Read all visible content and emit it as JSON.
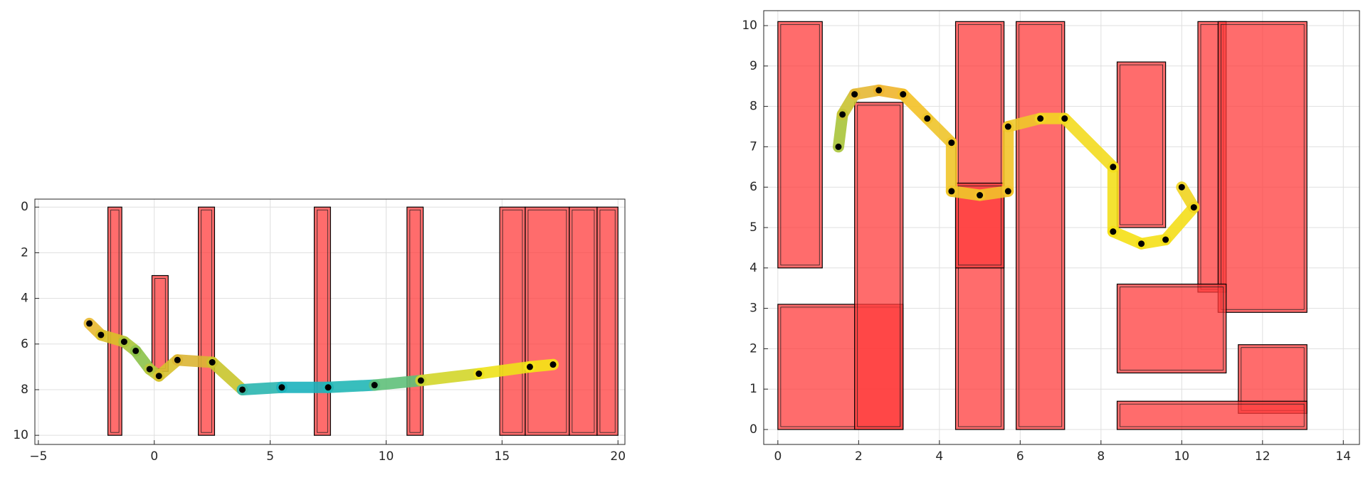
{
  "chart_data": [
    {
      "type": "line",
      "y_reversed": true,
      "grid": true,
      "obstacle_color": "#ff3b3b",
      "xlim": [
        -5.15,
        20.3
      ],
      "ylim": [
        -0.35,
        10.4
      ],
      "xticks": [
        {
          "value": -5,
          "label": "−5"
        },
        0,
        5,
        10,
        15,
        20
      ],
      "yticks": [
        0,
        2,
        4,
        6,
        8,
        10
      ],
      "obstacles": [
        {
          "x": [
            -2.0,
            -1.4
          ],
          "y": [
            0,
            10
          ]
        },
        {
          "x": [
            -0.1,
            0.6
          ],
          "y": [
            3,
            7.2
          ]
        },
        {
          "x": [
            1.9,
            2.6
          ],
          "y": [
            0,
            10
          ]
        },
        {
          "x": [
            6.9,
            7.6
          ],
          "y": [
            0,
            10
          ]
        },
        {
          "x": [
            10.9,
            11.6
          ],
          "y": [
            0,
            10
          ]
        },
        {
          "x": [
            14.9,
            16.0
          ],
          "y": [
            0,
            10
          ]
        },
        {
          "x": [
            16.0,
            17.9
          ],
          "y": [
            0,
            10
          ]
        },
        {
          "x": [
            17.9,
            19.1
          ],
          "y": [
            0,
            10
          ]
        },
        {
          "x": [
            19.1,
            20.0
          ],
          "y": [
            0,
            10
          ]
        }
      ],
      "series": [
        {
          "x": [
            -2.8,
            -2.3,
            -1.3,
            -0.8,
            -0.2,
            0.2,
            1.0,
            2.5,
            3.8,
            5.5,
            7.5,
            9.5,
            11.5,
            14.0,
            16.2,
            17.2
          ],
          "y": [
            5.1,
            5.6,
            5.9,
            6.3,
            7.1,
            7.4,
            6.7,
            6.8,
            8.0,
            7.9,
            7.9,
            7.8,
            7.6,
            7.3,
            7.0,
            6.9
          ],
          "colors": [
            "#e8b830",
            "#d9c028",
            "#a9c53a",
            "#8cc24a",
            "#b9c63a",
            "#d8c12e",
            "#dcb534",
            "#c9c52c",
            "#2ab6b0",
            "#1bb3be",
            "#22b7b6",
            "#5fc07a",
            "#d3d62a",
            "#eee21a",
            "#f5e516",
            "#f2dc1c"
          ]
        }
      ]
    },
    {
      "type": "line",
      "y_reversed": false,
      "grid": true,
      "obstacle_color": "#ff3b3b",
      "xlim": [
        -0.35,
        14.4
      ],
      "ylim": [
        -0.37,
        10.37
      ],
      "xticks": [
        0,
        2,
        4,
        6,
        8,
        10,
        12,
        14
      ],
      "yticks": [
        0,
        1,
        2,
        3,
        4,
        5,
        6,
        7,
        8,
        9,
        10
      ],
      "obstacles": [
        {
          "x": [
            0,
            1.1
          ],
          "y": [
            4,
            10.1
          ]
        },
        {
          "x": [
            0,
            3.1
          ],
          "y": [
            0,
            3.1
          ]
        },
        {
          "x": [
            1.9,
            3.1
          ],
          "y": [
            0,
            8.1
          ]
        },
        {
          "x": [
            4.4,
            5.6
          ],
          "y": [
            0,
            10.1
          ]
        },
        {
          "x": [
            4.4,
            5.6
          ],
          "y": [
            4,
            6.1
          ]
        },
        {
          "x": [
            5.9,
            7.1
          ],
          "y": [
            0,
            10.1
          ]
        },
        {
          "x": [
            8.4,
            9.6
          ],
          "y": [
            5,
            9.1
          ]
        },
        {
          "x": [
            10.4,
            11.1
          ],
          "y": [
            3.4,
            10.1
          ]
        },
        {
          "x": [
            10.9,
            13.1
          ],
          "y": [
            2.9,
            10.1
          ]
        },
        {
          "x": [
            8.4,
            11.1
          ],
          "y": [
            1.4,
            3.6
          ]
        },
        {
          "x": [
            11.4,
            13.1
          ],
          "y": [
            0.4,
            2.1
          ]
        },
        {
          "x": [
            8.4,
            13.1
          ],
          "y": [
            0,
            0.7
          ]
        }
      ],
      "series": [
        {
          "x": [
            1.5,
            1.6,
            1.9,
            2.5,
            3.1,
            3.7,
            4.3,
            4.3,
            5.0,
            5.7,
            5.7,
            6.5,
            7.1,
            8.3,
            8.3,
            9.0,
            9.6,
            10.3,
            10.0
          ],
          "y": [
            7.0,
            7.8,
            8.3,
            8.4,
            8.3,
            7.7,
            7.1,
            5.9,
            5.8,
            5.9,
            7.5,
            7.7,
            7.7,
            6.5,
            4.9,
            4.6,
            4.7,
            5.5,
            6.0
          ],
          "colors": [
            "#a8c43a",
            "#c9c231",
            "#e6b834",
            "#f0b52c",
            "#f3c126",
            "#eec42a",
            "#f1c52a",
            "#f0c62a",
            "#f2c02a",
            "#f3c52a",
            "#f0c82a",
            "#f3d623",
            "#f3dc1f",
            "#f3df1c",
            "#f5e015",
            "#f5e017",
            "#f4de1a",
            "#f1d41f",
            "#eecd22"
          ]
        }
      ]
    }
  ]
}
